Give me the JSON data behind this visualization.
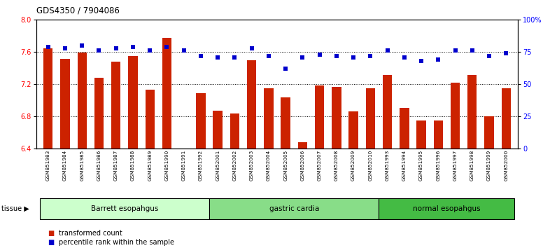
{
  "title": "GDS4350 / 7904086",
  "samples": [
    "GSM851983",
    "GSM851984",
    "GSM851985",
    "GSM851986",
    "GSM851987",
    "GSM851988",
    "GSM851989",
    "GSM851990",
    "GSM851991",
    "GSM851992",
    "GSM852001",
    "GSM852002",
    "GSM852003",
    "GSM852004",
    "GSM852005",
    "GSM852006",
    "GSM852007",
    "GSM852008",
    "GSM852009",
    "GSM852010",
    "GSM851993",
    "GSM851994",
    "GSM851995",
    "GSM851996",
    "GSM851997",
    "GSM851998",
    "GSM851999",
    "GSM852000"
  ],
  "bar_values": [
    7.65,
    7.52,
    7.59,
    7.28,
    7.48,
    7.55,
    7.13,
    7.78,
    6.4,
    7.09,
    6.87,
    6.84,
    7.5,
    7.15,
    7.04,
    6.48,
    7.19,
    7.17,
    6.86,
    7.15,
    7.32,
    6.91,
    6.75,
    6.75,
    7.22,
    7.32,
    6.8,
    7.15
  ],
  "dot_values": [
    79,
    78,
    80,
    76,
    78,
    79,
    76,
    79,
    76,
    72,
    71,
    71,
    78,
    72,
    62,
    71,
    73,
    72,
    71,
    72,
    76,
    71,
    68,
    69,
    76,
    76,
    72,
    74
  ],
  "groups": [
    {
      "label": "Barrett esopahgus",
      "start": 0,
      "end": 10,
      "color": "#ccffcc"
    },
    {
      "label": "gastric cardia",
      "start": 10,
      "end": 20,
      "color": "#88dd88"
    },
    {
      "label": "normal esopahgus",
      "start": 20,
      "end": 28,
      "color": "#44bb44"
    }
  ],
  "bar_color": "#cc2200",
  "dot_color": "#0000cc",
  "ylim_left": [
    6.4,
    8.0
  ],
  "ylim_right": [
    0,
    100
  ],
  "yticks_left": [
    6.4,
    6.8,
    7.2,
    7.6,
    8.0
  ],
  "yticks_right": [
    0,
    25,
    50,
    75,
    100
  ],
  "ytick_labels_right": [
    "0",
    "25",
    "50",
    "75",
    "100%"
  ],
  "legend_bar": "transformed count",
  "legend_dot": "percentile rank within the sample",
  "grid_values": [
    6.8,
    7.2,
    7.6
  ],
  "background_color": "#ffffff",
  "bar_baseline": 6.4
}
